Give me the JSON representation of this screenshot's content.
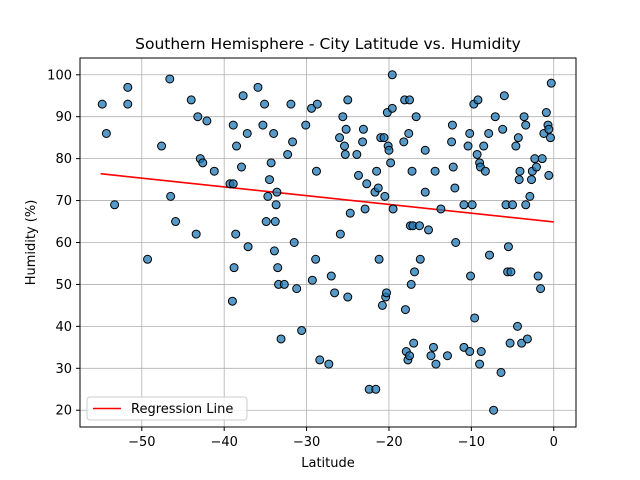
{
  "chart_data": {
    "type": "scatter",
    "title": "Southern Hemisphere - City Latitude vs. Humidity",
    "xlabel": "Latitude",
    "ylabel": "Humidity (%)",
    "xlim": [
      -57.5,
      2.7
    ],
    "ylim": [
      16,
      104
    ],
    "xticks": [
      -50,
      -40,
      -30,
      -20,
      -10,
      0
    ],
    "yticks": [
      20,
      30,
      40,
      50,
      60,
      70,
      80,
      90,
      100
    ],
    "grid": true,
    "legend": {
      "placement": "lower-left",
      "entries": [
        "Regression Line"
      ]
    },
    "colors": {
      "points": "#1f77b4",
      "regression": "#ff0000"
    },
    "regression": {
      "x": [
        -55.0,
        0.0
      ],
      "y": [
        76.4,
        64.9
      ],
      "name": "Regression Line"
    },
    "points": [
      [
        -54.8,
        93
      ],
      [
        -54.3,
        86
      ],
      [
        -53.3,
        69
      ],
      [
        -51.7,
        97
      ],
      [
        -51.7,
        93
      ],
      [
        -49.3,
        56
      ],
      [
        -47.6,
        83
      ],
      [
        -46.6,
        99
      ],
      [
        -46.5,
        71
      ],
      [
        -45.9,
        65
      ],
      [
        -44.0,
        94
      ],
      [
        -43.4,
        62
      ],
      [
        -43.2,
        90
      ],
      [
        -42.9,
        80
      ],
      [
        -42.6,
        79
      ],
      [
        -42.1,
        89
      ],
      [
        -41.2,
        77
      ],
      [
        -39.3,
        74
      ],
      [
        -38.9,
        74
      ],
      [
        -39.0,
        46
      ],
      [
        -38.9,
        88
      ],
      [
        -38.8,
        54
      ],
      [
        -38.6,
        62
      ],
      [
        -38.5,
        83
      ],
      [
        -37.9,
        78
      ],
      [
        -37.7,
        95
      ],
      [
        -37.2,
        86
      ],
      [
        -37.1,
        59
      ],
      [
        -35.9,
        97
      ],
      [
        -35.3,
        88
      ],
      [
        -35.1,
        93
      ],
      [
        -34.9,
        65
      ],
      [
        -34.7,
        71
      ],
      [
        -34.5,
        75
      ],
      [
        -34.3,
        79
      ],
      [
        -34.0,
        86
      ],
      [
        -33.9,
        58
      ],
      [
        -33.8,
        65
      ],
      [
        -33.7,
        69
      ],
      [
        -33.6,
        72
      ],
      [
        -33.5,
        54
      ],
      [
        -33.4,
        50
      ],
      [
        -33.1,
        37
      ],
      [
        -32.7,
        50
      ],
      [
        -32.3,
        81
      ],
      [
        -31.9,
        93
      ],
      [
        -31.7,
        84
      ],
      [
        -31.5,
        60
      ],
      [
        -31.2,
        49
      ],
      [
        -30.6,
        39
      ],
      [
        -30.1,
        88
      ],
      [
        -29.4,
        92
      ],
      [
        -29.3,
        51
      ],
      [
        -28.9,
        56
      ],
      [
        -28.8,
        77
      ],
      [
        -28.7,
        93
      ],
      [
        -28.4,
        32
      ],
      [
        -27.3,
        31
      ],
      [
        -27.0,
        52
      ],
      [
        -26.6,
        48
      ],
      [
        -26.0,
        85
      ],
      [
        -25.9,
        62
      ],
      [
        -25.6,
        90
      ],
      [
        -25.4,
        83
      ],
      [
        -25.3,
        81
      ],
      [
        -25.2,
        87
      ],
      [
        -25.0,
        94
      ],
      [
        -25.0,
        47
      ],
      [
        -24.7,
        67
      ],
      [
        -23.9,
        81
      ],
      [
        -23.7,
        76
      ],
      [
        -23.2,
        84
      ],
      [
        -23.1,
        87
      ],
      [
        -22.9,
        68
      ],
      [
        -22.7,
        74
      ],
      [
        -22.4,
        25
      ],
      [
        -21.7,
        72
      ],
      [
        -21.6,
        25
      ],
      [
        -21.5,
        77
      ],
      [
        -21.3,
        73
      ],
      [
        -21.2,
        56
      ],
      [
        -21.0,
        85
      ],
      [
        -20.8,
        45
      ],
      [
        -20.6,
        85
      ],
      [
        -20.5,
        71
      ],
      [
        -20.4,
        47
      ],
      [
        -20.3,
        48
      ],
      [
        -20.2,
        91
      ],
      [
        -20.1,
        83
      ],
      [
        -20.0,
        82
      ],
      [
        -19.8,
        79
      ],
      [
        -19.6,
        100
      ],
      [
        -19.6,
        92
      ],
      [
        -19.5,
        68
      ],
      [
        -18.2,
        84
      ],
      [
        -18.1,
        94
      ],
      [
        -18.0,
        44
      ],
      [
        -17.9,
        34
      ],
      [
        -17.7,
        32
      ],
      [
        -17.6,
        86
      ],
      [
        -17.5,
        94
      ],
      [
        -17.5,
        33
      ],
      [
        -17.4,
        64
      ],
      [
        -17.3,
        50
      ],
      [
        -17.2,
        77
      ],
      [
        -17.1,
        64
      ],
      [
        -17.0,
        36
      ],
      [
        -16.9,
        53
      ],
      [
        -16.7,
        90
      ],
      [
        -16.3,
        64
      ],
      [
        -16.2,
        56
      ],
      [
        -15.6,
        72
      ],
      [
        -15.6,
        82
      ],
      [
        -15.2,
        63
      ],
      [
        -14.9,
        33
      ],
      [
        -14.6,
        35
      ],
      [
        -14.4,
        77
      ],
      [
        -14.3,
        31
      ],
      [
        -13.7,
        68
      ],
      [
        -12.9,
        33
      ],
      [
        -12.4,
        84
      ],
      [
        -12.3,
        88
      ],
      [
        -12.2,
        78
      ],
      [
        -12.0,
        73
      ],
      [
        -11.9,
        60
      ],
      [
        -10.9,
        69
      ],
      [
        -10.9,
        35
      ],
      [
        -10.4,
        83
      ],
      [
        -10.2,
        86
      ],
      [
        -10.2,
        34
      ],
      [
        -10.1,
        52
      ],
      [
        -9.9,
        69
      ],
      [
        -9.7,
        93
      ],
      [
        -9.6,
        42
      ],
      [
        -9.3,
        81
      ],
      [
        -9.2,
        94
      ],
      [
        -9.0,
        79
      ],
      [
        -9.0,
        31
      ],
      [
        -8.9,
        78
      ],
      [
        -8.8,
        34
      ],
      [
        -8.5,
        83
      ],
      [
        -8.3,
        77
      ],
      [
        -7.9,
        86
      ],
      [
        -7.8,
        57
      ],
      [
        -7.3,
        20
      ],
      [
        -7.1,
        90
      ],
      [
        -6.4,
        29
      ],
      [
        -6.2,
        87
      ],
      [
        -6.0,
        95
      ],
      [
        -5.8,
        69
      ],
      [
        -5.6,
        53
      ],
      [
        -5.5,
        59
      ],
      [
        -5.3,
        36
      ],
      [
        -5.2,
        53
      ],
      [
        -5.0,
        69
      ],
      [
        -4.6,
        83
      ],
      [
        -4.4,
        40
      ],
      [
        -4.3,
        85
      ],
      [
        -4.2,
        75
      ],
      [
        -4.1,
        77
      ],
      [
        -3.9,
        36
      ],
      [
        -3.6,
        90
      ],
      [
        -3.4,
        88
      ],
      [
        -3.4,
        69
      ],
      [
        -3.2,
        37
      ],
      [
        -2.9,
        71
      ],
      [
        -2.7,
        75
      ],
      [
        -2.6,
        77
      ],
      [
        -2.3,
        80
      ],
      [
        -2.1,
        78
      ],
      [
        -1.9,
        52
      ],
      [
        -1.6,
        49
      ],
      [
        -1.4,
        80
      ],
      [
        -1.2,
        86
      ],
      [
        -0.9,
        91
      ],
      [
        -0.7,
        88
      ],
      [
        -0.6,
        76
      ],
      [
        -0.4,
        85
      ],
      [
        -0.3,
        98
      ],
      [
        -0.6,
        87
      ]
    ]
  }
}
